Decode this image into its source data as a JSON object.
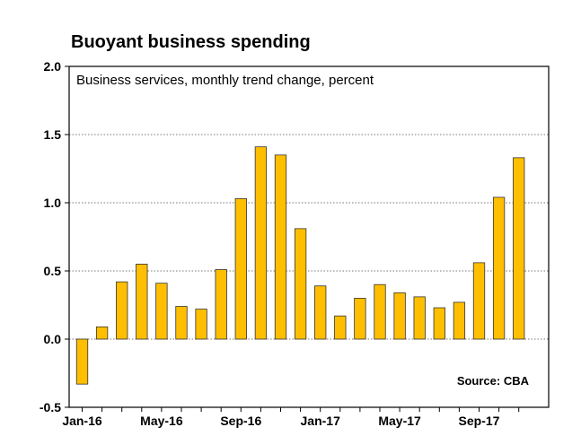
{
  "chart_data": {
    "type": "bar",
    "title": "Buoyant business spending",
    "subtitle": "Business services, monthly trend change, percent",
    "source": "Source: CBA",
    "xlabel": "",
    "ylabel": "",
    "ylim": [
      -0.5,
      2.0
    ],
    "yticks": [
      -0.5,
      0.0,
      0.5,
      1.0,
      1.5,
      2.0
    ],
    "ytick_labels": [
      "-0.5",
      "0.0",
      "0.5",
      "1.0",
      "1.5",
      "2.0"
    ],
    "grid": "horizontal dotted",
    "categories": [
      "Jan-16",
      "Feb-16",
      "Mar-16",
      "Apr-16",
      "May-16",
      "Jun-16",
      "Jul-16",
      "Aug-16",
      "Sep-16",
      "Oct-16",
      "Nov-16",
      "Dec-16",
      "Jan-17",
      "Feb-17",
      "Mar-17",
      "Apr-17",
      "May-17",
      "Jun-17",
      "Jul-17",
      "Aug-17",
      "Sep-17",
      "Oct-17",
      "Nov-17"
    ],
    "xtick_labels": [
      {
        "index": 0,
        "label": "Jan-16"
      },
      {
        "index": 4,
        "label": "May-16"
      },
      {
        "index": 8,
        "label": "Sep-16"
      },
      {
        "index": 12,
        "label": "Jan-17"
      },
      {
        "index": 16,
        "label": "May-17"
      },
      {
        "index": 20,
        "label": "Sep-17"
      }
    ],
    "values": [
      -0.33,
      0.09,
      0.42,
      0.55,
      0.41,
      0.24,
      0.22,
      0.51,
      1.03,
      1.41,
      1.35,
      0.81,
      0.39,
      0.17,
      0.3,
      0.4,
      0.34,
      0.31,
      0.23,
      0.27,
      0.56,
      1.04,
      1.33
    ],
    "bar_color": "#FFBF00",
    "bar_edge_color": "#333333"
  }
}
